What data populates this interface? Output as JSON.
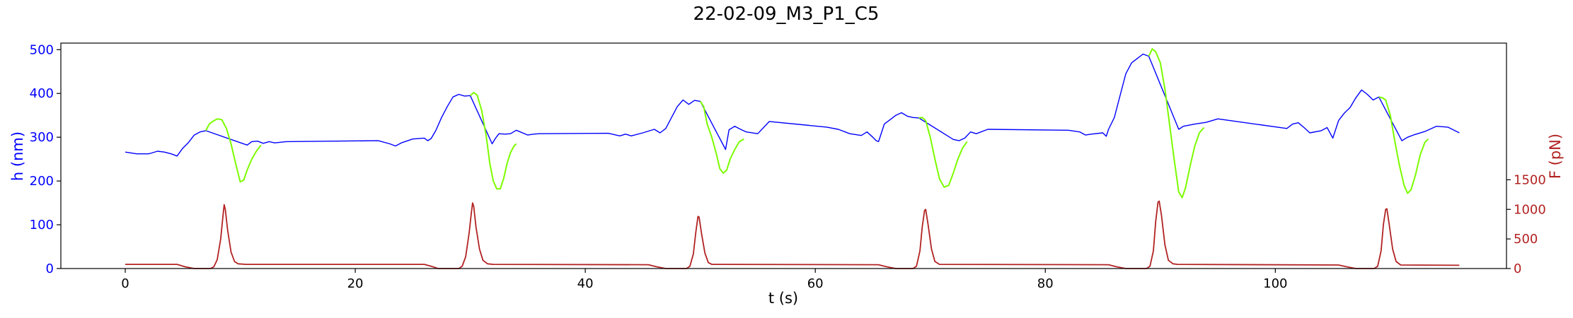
{
  "chart_data": {
    "type": "line",
    "title": "22-02-09_M3_P1_C5",
    "xlabel": "t (s)",
    "ylabel_left": "h (nm)",
    "ylabel_right": "F (pN)",
    "xlim": [
      -5.6,
      120.1
    ],
    "ylim_left": [
      0,
      515
    ],
    "ylim_right": [
      0,
      3810
    ],
    "x_ticks": [
      0,
      20,
      40,
      60,
      80,
      100
    ],
    "y_ticks_left": [
      0,
      100,
      200,
      300,
      400,
      500
    ],
    "y_ticks_right": [
      0,
      500,
      1000,
      1500
    ],
    "colors": {
      "height_line": "#0000ff",
      "indent_segments": "#7cfc00",
      "force_line": "#b22222",
      "left_axis": "#0000ff",
      "right_axis": "#b22222"
    },
    "series": [
      {
        "axis": "left",
        "color": "#0000ff",
        "points": [
          [
            0,
            266
          ],
          [
            1,
            262
          ],
          [
            2,
            262
          ],
          [
            2.3,
            264
          ],
          [
            2.8,
            268
          ],
          [
            3.4,
            266
          ],
          [
            4,
            262
          ],
          [
            4.5,
            257
          ],
          [
            5,
            275
          ],
          [
            5.5,
            288
          ],
          [
            6,
            305
          ],
          [
            6.5,
            312
          ],
          [
            7,
            315
          ],
          [
            10.6,
            282
          ],
          [
            11,
            290
          ],
          [
            11.5,
            291
          ],
          [
            12,
            286
          ],
          [
            12.5,
            290
          ],
          [
            13,
            287
          ],
          [
            14,
            290
          ],
          [
            22,
            292
          ],
          [
            23,
            285
          ],
          [
            23.5,
            280
          ],
          [
            24,
            287
          ],
          [
            25,
            296
          ],
          [
            26,
            298
          ],
          [
            26.3,
            292
          ],
          [
            26.6,
            297
          ],
          [
            27,
            315
          ],
          [
            27.5,
            345
          ],
          [
            28,
            370
          ],
          [
            28.5,
            392
          ],
          [
            29,
            398
          ],
          [
            29.5,
            394
          ],
          [
            30,
            395
          ],
          [
            31.9,
            285
          ],
          [
            32.2,
            298
          ],
          [
            32.5,
            308
          ],
          [
            33,
            307
          ],
          [
            33.5,
            308
          ],
          [
            34,
            316
          ],
          [
            35,
            305
          ],
          [
            35.5,
            307
          ],
          [
            36,
            308
          ],
          [
            42,
            309
          ],
          [
            43,
            303
          ],
          [
            43.5,
            307
          ],
          [
            44,
            303
          ],
          [
            45,
            310
          ],
          [
            46,
            318
          ],
          [
            46.5,
            310
          ],
          [
            47,
            320
          ],
          [
            47.5,
            345
          ],
          [
            48,
            370
          ],
          [
            48.5,
            385
          ],
          [
            49,
            375
          ],
          [
            49.5,
            384
          ],
          [
            50,
            382
          ],
          [
            52.2,
            272
          ],
          [
            52.5,
            317
          ],
          [
            53,
            325
          ],
          [
            53.5,
            318
          ],
          [
            54,
            312
          ],
          [
            55,
            308
          ],
          [
            56,
            336
          ],
          [
            61,
            323
          ],
          [
            62,
            318
          ],
          [
            63,
            308
          ],
          [
            64,
            304
          ],
          [
            64.5,
            312
          ],
          [
            65,
            300
          ],
          [
            65.3,
            292
          ],
          [
            65.5,
            290
          ],
          [
            66,
            330
          ],
          [
            66.5,
            340
          ],
          [
            67,
            350
          ],
          [
            67.5,
            356
          ],
          [
            68,
            348
          ],
          [
            68.5,
            345
          ],
          [
            69,
            344
          ],
          [
            72,
            295
          ],
          [
            72.5,
            292
          ],
          [
            73,
            298
          ],
          [
            73.5,
            312
          ],
          [
            74,
            308
          ],
          [
            75,
            318
          ],
          [
            82,
            316
          ],
          [
            83,
            312
          ],
          [
            83.5,
            305
          ],
          [
            84,
            307
          ],
          [
            85,
            310
          ],
          [
            85.3,
            302
          ],
          [
            85.5,
            318
          ],
          [
            86,
            345
          ],
          [
            86.5,
            395
          ],
          [
            87,
            445
          ],
          [
            87.5,
            470
          ],
          [
            88,
            480
          ],
          [
            88.5,
            490
          ],
          [
            89,
            485
          ],
          [
            91.6,
            318
          ],
          [
            92,
            325
          ],
          [
            93,
            330
          ],
          [
            94,
            334
          ],
          [
            95,
            342
          ],
          [
            101,
            320
          ],
          [
            101.5,
            330
          ],
          [
            102,
            333
          ],
          [
            102.5,
            322
          ],
          [
            103,
            310
          ],
          [
            104,
            315
          ],
          [
            104.5,
            322
          ],
          [
            105,
            298
          ],
          [
            105.5,
            338
          ],
          [
            106,
            355
          ],
          [
            106.5,
            368
          ],
          [
            107,
            390
          ],
          [
            107.5,
            408
          ],
          [
            108,
            398
          ],
          [
            108.5,
            385
          ],
          [
            109,
            392
          ],
          [
            111,
            292
          ],
          [
            111.5,
            300
          ],
          [
            112,
            305
          ],
          [
            113,
            313
          ],
          [
            114,
            325
          ],
          [
            115,
            323
          ],
          [
            116,
            310
          ]
        ]
      },
      {
        "axis": "left",
        "color": "#7cfc00",
        "segments": [
          [
            [
              7,
              315
            ],
            [
              7.3,
              330
            ],
            [
              7.6,
              336
            ],
            [
              8,
              342
            ],
            [
              8.4,
              340
            ],
            [
              8.8,
              320
            ],
            [
              9.2,
              285
            ],
            [
              9.6,
              240
            ],
            [
              10,
              198
            ],
            [
              10.3,
              202
            ],
            [
              10.6,
              225
            ],
            [
              11,
              250
            ],
            [
              11.4,
              268
            ],
            [
              11.8,
              282
            ]
          ],
          [
            [
              30,
              395
            ],
            [
              30.3,
              402
            ],
            [
              30.6,
              396
            ],
            [
              31,
              360
            ],
            [
              31.4,
              300
            ],
            [
              31.7,
              240
            ],
            [
              32,
              200
            ],
            [
              32.3,
              182
            ],
            [
              32.6,
              182
            ],
            [
              32.9,
              205
            ],
            [
              33.2,
              240
            ],
            [
              33.5,
              265
            ],
            [
              33.8,
              280
            ],
            [
              34,
              285
            ]
          ],
          [
            [
              50,
              382
            ],
            [
              50.3,
              370
            ],
            [
              50.6,
              330
            ],
            [
              51,
              300
            ],
            [
              51.4,
              262
            ],
            [
              51.7,
              228
            ],
            [
              52,
              218
            ],
            [
              52.3,
              225
            ],
            [
              52.6,
              250
            ],
            [
              53,
              272
            ],
            [
              53.4,
              290
            ],
            [
              53.8,
              296
            ]
          ],
          [
            [
              69,
              344
            ],
            [
              69.3,
              345
            ],
            [
              69.6,
              338
            ],
            [
              70,
              300
            ],
            [
              70.4,
              250
            ],
            [
              70.8,
              205
            ],
            [
              71.2,
              186
            ],
            [
              71.6,
              190
            ],
            [
              72,
              218
            ],
            [
              72.4,
              250
            ],
            [
              72.8,
              275
            ],
            [
              73.2,
              290
            ]
          ],
          [
            [
              89,
              485
            ],
            [
              89.3,
              502
            ],
            [
              89.6,
              495
            ],
            [
              90,
              470
            ],
            [
              90.4,
              410
            ],
            [
              90.8,
              330
            ],
            [
              91.2,
              250
            ],
            [
              91.6,
              175
            ],
            [
              91.9,
              162
            ],
            [
              92.2,
              185
            ],
            [
              92.6,
              235
            ],
            [
              93,
              280
            ],
            [
              93.4,
              310
            ],
            [
              93.8,
              322
            ]
          ],
          [
            [
              109,
              392
            ],
            [
              109.3,
              390
            ],
            [
              109.6,
              385
            ],
            [
              110,
              350
            ],
            [
              110.4,
              290
            ],
            [
              110.8,
              235
            ],
            [
              111.2,
              190
            ],
            [
              111.5,
              172
            ],
            [
              111.8,
              180
            ],
            [
              112.2,
              215
            ],
            [
              112.6,
              260
            ],
            [
              113,
              288
            ],
            [
              113.3,
              296
            ]
          ]
        ]
      },
      {
        "axis": "right",
        "color": "#b22222",
        "points": [
          [
            0,
            70
          ],
          [
            4.5,
            70
          ],
          [
            5.2,
            30
          ],
          [
            6,
            0
          ],
          [
            7.4,
            0
          ],
          [
            7.7,
            30
          ],
          [
            8,
            150
          ],
          [
            8.3,
            500
          ],
          [
            8.5,
            900
          ],
          [
            8.6,
            1080
          ],
          [
            8.7,
            1000
          ],
          [
            8.9,
            650
          ],
          [
            9.2,
            280
          ],
          [
            9.5,
            120
          ],
          [
            9.8,
            80
          ],
          [
            10.5,
            70
          ],
          [
            26,
            70
          ],
          [
            26.6,
            40
          ],
          [
            27.2,
            0
          ],
          [
            29,
            0
          ],
          [
            29.3,
            40
          ],
          [
            29.6,
            200
          ],
          [
            29.9,
            600
          ],
          [
            30.1,
            950
          ],
          [
            30.2,
            1110
          ],
          [
            30.3,
            1050
          ],
          [
            30.5,
            700
          ],
          [
            30.8,
            330
          ],
          [
            31.1,
            140
          ],
          [
            31.5,
            80
          ],
          [
            32,
            70
          ],
          [
            45.5,
            65
          ],
          [
            46.2,
            30
          ],
          [
            47,
            0
          ],
          [
            48.8,
            0
          ],
          [
            49.1,
            40
          ],
          [
            49.4,
            250
          ],
          [
            49.6,
            600
          ],
          [
            49.8,
            880
          ],
          [
            49.9,
            870
          ],
          [
            50.1,
            600
          ],
          [
            50.4,
            260
          ],
          [
            50.7,
            100
          ],
          [
            51,
            70
          ],
          [
            65.5,
            65
          ],
          [
            66.2,
            30
          ],
          [
            67,
            0
          ],
          [
            68.5,
            0
          ],
          [
            68.8,
            40
          ],
          [
            69.1,
            300
          ],
          [
            69.3,
            700
          ],
          [
            69.5,
            980
          ],
          [
            69.6,
            1000
          ],
          [
            69.8,
            750
          ],
          [
            70.1,
            330
          ],
          [
            70.4,
            120
          ],
          [
            70.8,
            70
          ],
          [
            85.5,
            65
          ],
          [
            86.2,
            30
          ],
          [
            87,
            0
          ],
          [
            88.8,
            0
          ],
          [
            89.1,
            40
          ],
          [
            89.4,
            300
          ],
          [
            89.6,
            800
          ],
          [
            89.8,
            1120
          ],
          [
            89.9,
            1140
          ],
          [
            90.1,
            900
          ],
          [
            90.4,
            400
          ],
          [
            90.7,
            140
          ],
          [
            91.1,
            80
          ],
          [
            91.5,
            70
          ],
          [
            105.5,
            60
          ],
          [
            106.2,
            30
          ],
          [
            107,
            0
          ],
          [
            108.6,
            0
          ],
          [
            108.9,
            40
          ],
          [
            109.2,
            300
          ],
          [
            109.4,
            750
          ],
          [
            109.6,
            1000
          ],
          [
            109.7,
            1010
          ],
          [
            109.9,
            750
          ],
          [
            110.2,
            330
          ],
          [
            110.5,
            120
          ],
          [
            110.9,
            60
          ],
          [
            116,
            55
          ]
        ]
      }
    ]
  }
}
